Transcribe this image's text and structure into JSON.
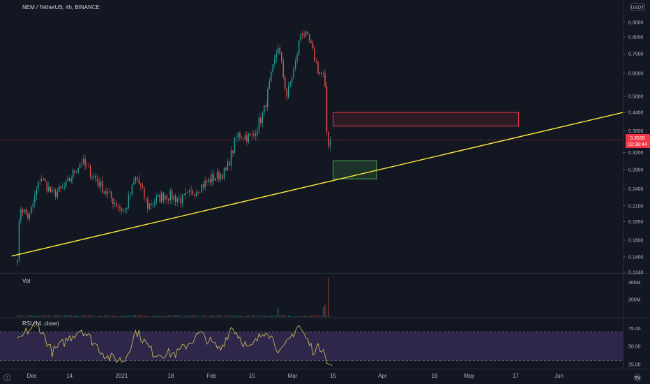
{
  "header": {
    "title": "NEM / TetherUS, 4h, BINANCE",
    "currency_badge": "USDT",
    "currency_badge_top": "USDT"
  },
  "price_tag": {
    "value": "0.3539",
    "countdown": "02:38:44",
    "color": "#f23645"
  },
  "colors": {
    "background": "#131722",
    "up": "#26a69a",
    "down": "#ef5350",
    "trendline": "#ffeb3b",
    "rsi_line": "#c9b458",
    "rsi_band": "#7e57c2",
    "resistance_box": "#f23645",
    "support_box": "#4caf50"
  },
  "panes": {
    "volume_label": "Vol",
    "rsi_label": "RSI (14, close)"
  },
  "footer": {
    "timezone_icon_label": "Z",
    "logo_label": "TV"
  },
  "chart_data": [
    {
      "type": "candlestick",
      "title": "NEM / TetherUS, 4h, BINANCE",
      "y_scale": "log",
      "ylim": [
        0.124,
        0.95
      ],
      "x_tick_labels": [
        "Dec",
        "14",
        "2021",
        "18",
        "Feb",
        "15",
        "Mar",
        "15",
        "Apr",
        "19",
        "May",
        "17",
        "Jun"
      ],
      "y_tick_labels": [
        "0.9000",
        "0.8000",
        "0.7000",
        "0.6000",
        "0.5000",
        "0.4400",
        "0.3800",
        "0.3200",
        "0.2800",
        "0.2400",
        "0.2100",
        "0.1850",
        "0.1600",
        "0.1400",
        "0.1240"
      ],
      "y_tick_values": [
        0.9,
        0.8,
        0.7,
        0.6,
        0.5,
        0.44,
        0.38,
        0.32,
        0.28,
        0.24,
        0.21,
        0.185,
        0.16,
        0.14,
        0.124
      ],
      "x_tick_dates": [
        "2020-12-01",
        "2020-12-14",
        "2021-01-01",
        "2021-01-18",
        "2021-02-01",
        "2021-02-15",
        "2021-03-01",
        "2021-03-15",
        "2021-04-01",
        "2021-04-19",
        "2021-05-01",
        "2021-05-17",
        "2021-06-01"
      ],
      "x_range": [
        "2020-11-20",
        "2021-06-23"
      ],
      "closes_anchor_points": [
        {
          "date": "2020-11-26",
          "close": 0.143
        },
        {
          "date": "2020-11-27",
          "close": 0.21
        },
        {
          "date": "2020-11-30",
          "close": 0.19
        },
        {
          "date": "2020-12-04",
          "close": 0.265
        },
        {
          "date": "2020-12-08",
          "close": 0.23
        },
        {
          "date": "2020-12-12",
          "close": 0.24
        },
        {
          "date": "2020-12-18",
          "close": 0.3
        },
        {
          "date": "2020-12-23",
          "close": 0.26
        },
        {
          "date": "2020-12-28",
          "close": 0.225
        },
        {
          "date": "2021-01-02",
          "close": 0.2
        },
        {
          "date": "2021-01-06",
          "close": 0.265
        },
        {
          "date": "2021-01-10",
          "close": 0.21
        },
        {
          "date": "2021-01-16",
          "close": 0.23
        },
        {
          "date": "2021-01-22",
          "close": 0.22
        },
        {
          "date": "2021-01-27",
          "close": 0.24
        },
        {
          "date": "2021-02-01",
          "close": 0.26
        },
        {
          "date": "2021-02-06",
          "close": 0.275
        },
        {
          "date": "2021-02-10",
          "close": 0.37
        },
        {
          "date": "2021-02-15",
          "close": 0.36
        },
        {
          "date": "2021-02-19",
          "close": 0.44
        },
        {
          "date": "2021-02-24",
          "close": 0.75
        },
        {
          "date": "2021-02-27",
          "close": 0.5
        },
        {
          "date": "2021-03-02",
          "close": 0.65
        },
        {
          "date": "2021-03-04",
          "close": 0.85
        },
        {
          "date": "2021-03-07",
          "close": 0.76
        },
        {
          "date": "2021-03-10",
          "close": 0.61
        },
        {
          "date": "2021-03-12",
          "close": 0.58
        },
        {
          "date": "2021-03-13",
          "close": 0.34
        },
        {
          "date": "2021-03-14",
          "close": 0.3539
        }
      ],
      "current_price": 0.3539,
      "trendline": {
        "start": {
          "date": "2020-11-24",
          "price": 0.141
        },
        "end": {
          "date": "2021-06-23",
          "price": 0.44
        }
      },
      "resistance_zone": {
        "from": "2021-03-15",
        "to": "2021-05-18",
        "low": 0.395,
        "high": 0.44
      },
      "support_zone": {
        "from": "2021-03-15",
        "to": "2021-03-30",
        "low": 0.26,
        "high": 0.3
      }
    },
    {
      "type": "bar",
      "title": "Vol",
      "y_tick_labels": [
        "400M",
        "200M"
      ],
      "y_tick_values": [
        400,
        200
      ],
      "ylim": [
        0,
        460
      ],
      "spikes": [
        {
          "date": "2021-02-24",
          "value": 120
        },
        {
          "date": "2021-03-13",
          "value": 470
        },
        {
          "date": "2021-03-12",
          "value": 160
        }
      ],
      "baseline_value": 15
    },
    {
      "type": "line",
      "title": "RSI (14, close)",
      "y_tick_labels": [
        "75.00",
        "50.00",
        "25.00"
      ],
      "y_tick_values": [
        75,
        50,
        25
      ],
      "ylim": [
        20,
        88
      ],
      "band": [
        30,
        70
      ],
      "anchor_points": [
        {
          "date": "2020-11-26",
          "value": 55
        },
        {
          "date": "2020-11-29",
          "value": 70
        },
        {
          "date": "2020-12-03",
          "value": 82
        },
        {
          "date": "2020-12-08",
          "value": 42
        },
        {
          "date": "2020-12-18",
          "value": 75
        },
        {
          "date": "2020-12-27",
          "value": 35
        },
        {
          "date": "2021-01-02",
          "value": 30
        },
        {
          "date": "2021-01-06",
          "value": 72
        },
        {
          "date": "2021-01-12",
          "value": 40
        },
        {
          "date": "2021-01-20",
          "value": 40
        },
        {
          "date": "2021-01-28",
          "value": 68
        },
        {
          "date": "2021-02-04",
          "value": 45
        },
        {
          "date": "2021-02-08",
          "value": 78
        },
        {
          "date": "2021-02-14",
          "value": 45
        },
        {
          "date": "2021-02-20",
          "value": 75
        },
        {
          "date": "2021-02-25",
          "value": 40
        },
        {
          "date": "2021-03-03",
          "value": 80
        },
        {
          "date": "2021-03-08",
          "value": 45
        },
        {
          "date": "2021-03-12",
          "value": 50
        },
        {
          "date": "2021-03-13",
          "value": 22
        },
        {
          "date": "2021-03-15",
          "value": 25
        }
      ]
    }
  ]
}
